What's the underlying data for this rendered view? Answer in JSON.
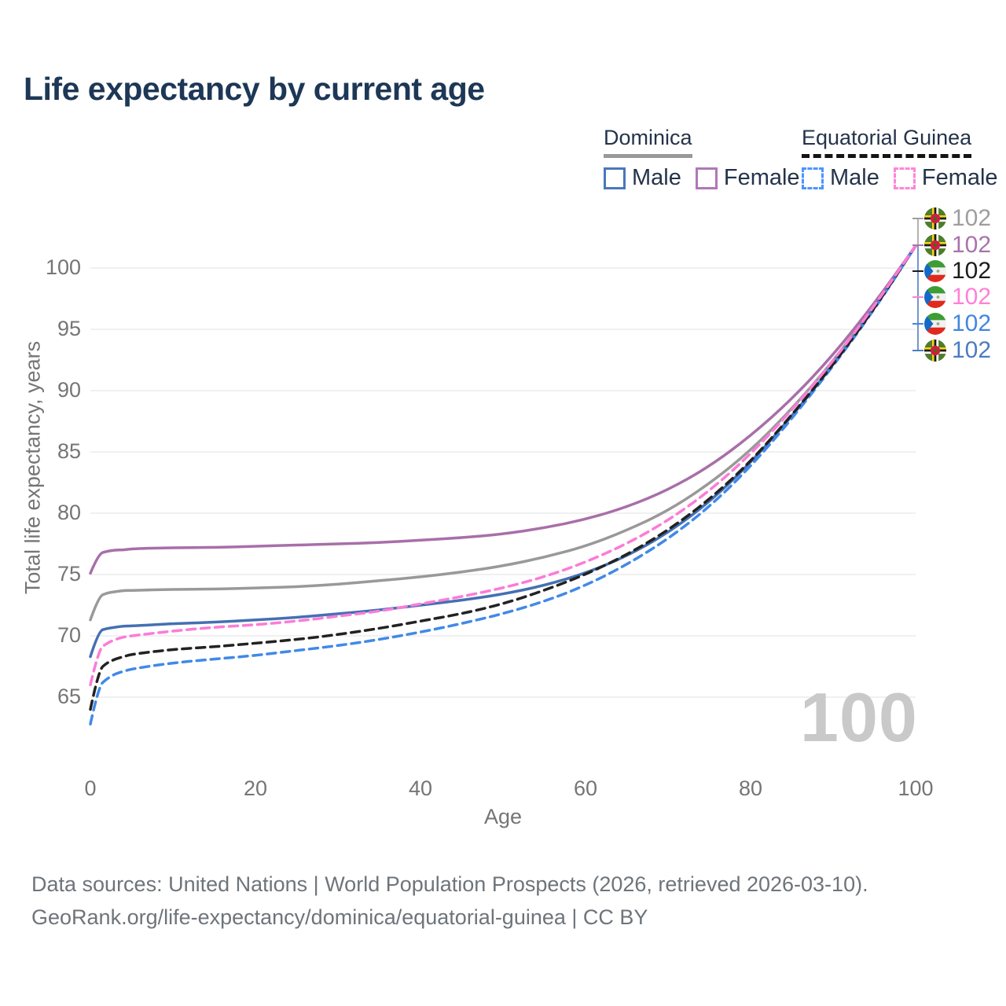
{
  "page": {
    "title": "Life expectancy by current age"
  },
  "legend": {
    "groups": [
      {
        "name": "Dominica",
        "line_style": "solid",
        "underline_color": "#999999",
        "items": [
          {
            "label": "Male",
            "swatch_style": "border:3px solid #4a77bb"
          },
          {
            "label": "Female",
            "swatch_style": "border:3px solid #b078b8"
          }
        ]
      },
      {
        "name": "Equatorial Guinea",
        "line_style": "dashed",
        "underline_color": "#141414",
        "items": [
          {
            "label": "Male",
            "swatch_style": "border:3px dashed #4d94ff"
          },
          {
            "label": "Female",
            "swatch_style": "border:3px dashed #ff85d6"
          }
        ]
      }
    ]
  },
  "chart_data": {
    "type": "line",
    "title": "Life expectancy by current age",
    "xlabel": "Age",
    "ylabel": "Total life expectancy, years",
    "xlim": [
      0,
      100
    ],
    "ylim": [
      61.5,
      103
    ],
    "x_ticks": [
      0,
      20,
      40,
      60,
      80,
      100
    ],
    "y_ticks": [
      65,
      70,
      75,
      80,
      85,
      90,
      95,
      100
    ],
    "grid": true,
    "legend_position": "top-right",
    "watermark": "100",
    "x": [
      0,
      1,
      2,
      3,
      4,
      5,
      10,
      15,
      20,
      25,
      30,
      35,
      40,
      45,
      50,
      55,
      60,
      65,
      70,
      75,
      80,
      85,
      90,
      95,
      100
    ],
    "series": [
      {
        "name": "Dominica All",
        "country": "Dominica",
        "sex": "All",
        "style": "solid",
        "color": "#999999",
        "values": [
          71.3,
          73.2,
          73.5,
          73.6,
          73.7,
          73.7,
          73.8,
          73.8,
          73.9,
          74.0,
          74.2,
          74.5,
          74.8,
          75.2,
          75.7,
          76.4,
          77.3,
          78.6,
          80.2,
          82.4,
          85.1,
          88.5,
          92.4,
          96.9,
          101.8
        ]
      },
      {
        "name": "Dominica Female",
        "country": "Dominica",
        "sex": "Female",
        "style": "solid",
        "color": "#a86fa9",
        "values": [
          75.1,
          76.7,
          76.9,
          77.0,
          77.0,
          77.1,
          77.2,
          77.2,
          77.3,
          77.4,
          77.5,
          77.6,
          77.8,
          78.0,
          78.3,
          78.8,
          79.5,
          80.5,
          81.9,
          83.8,
          86.3,
          89.3,
          92.9,
          97.1,
          101.8
        ]
      },
      {
        "name": "Dominica Male",
        "country": "Dominica",
        "sex": "Male",
        "style": "solid",
        "color": "#4470b3",
        "values": [
          68.3,
          70.4,
          70.6,
          70.7,
          70.8,
          70.8,
          71.0,
          71.1,
          71.3,
          71.5,
          71.8,
          72.1,
          72.5,
          72.9,
          73.4,
          74.1,
          75.1,
          76.5,
          78.4,
          80.9,
          84.1,
          87.9,
          92.1,
          96.7,
          101.8
        ]
      },
      {
        "name": "Equatorial Guinea Male",
        "country": "Equatorial Guinea",
        "sex": "Male",
        "style": "dashed",
        "color": "#4189e8",
        "values": [
          62.8,
          65.9,
          66.5,
          66.9,
          67.1,
          67.3,
          67.8,
          68.1,
          68.4,
          68.8,
          69.2,
          69.7,
          70.3,
          71.0,
          71.8,
          72.8,
          74.1,
          75.8,
          77.9,
          80.5,
          83.8,
          87.7,
          92.0,
          96.6,
          101.8
        ]
      },
      {
        "name": "Equatorial Guinea All",
        "country": "Equatorial Guinea",
        "sex": "All",
        "style": "dashed",
        "color": "#222222",
        "values": [
          64.0,
          67.2,
          67.8,
          68.1,
          68.3,
          68.5,
          68.9,
          69.1,
          69.4,
          69.7,
          70.1,
          70.6,
          71.2,
          71.8,
          72.6,
          73.7,
          75.0,
          76.6,
          78.6,
          81.1,
          84.2,
          88.0,
          92.1,
          96.7,
          101.8
        ]
      },
      {
        "name": "Equatorial Guinea Female",
        "country": "Equatorial Guinea",
        "sex": "Female",
        "style": "dashed",
        "color": "#fb7cd8",
        "values": [
          66.0,
          68.9,
          69.4,
          69.7,
          69.9,
          70.0,
          70.4,
          70.7,
          70.9,
          71.2,
          71.6,
          72.0,
          72.6,
          73.2,
          73.9,
          74.8,
          76.0,
          77.5,
          79.4,
          81.8,
          84.8,
          88.4,
          92.4,
          96.9,
          101.8
        ]
      }
    ],
    "end_labels": [
      {
        "flag": "dominica",
        "series": "Dominica All",
        "value": "102",
        "color": "#9e9e9e"
      },
      {
        "flag": "dominica",
        "series": "Dominica Female",
        "value": "102",
        "color": "#a873aa"
      },
      {
        "flag": "equatorial-guinea",
        "series": "Equatorial Guinea All",
        "value": "102",
        "color": "#1c1c1c"
      },
      {
        "flag": "equatorial-guinea",
        "series": "Equatorial Guinea Female",
        "value": "102",
        "color": "#ff80d8"
      },
      {
        "flag": "equatorial-guinea",
        "series": "Equatorial Guinea Male",
        "value": "102",
        "color": "#4286e0"
      },
      {
        "flag": "dominica",
        "series": "Dominica Male",
        "value": "102",
        "color": "#4c7cc0"
      }
    ]
  },
  "footer": {
    "line1": "Data sources: United Nations | World Population Prospects (2026, retrieved 2026-03-10).",
    "line2": "GeoRank.org/life-expectancy/dominica/equatorial-guinea | CC BY"
  }
}
